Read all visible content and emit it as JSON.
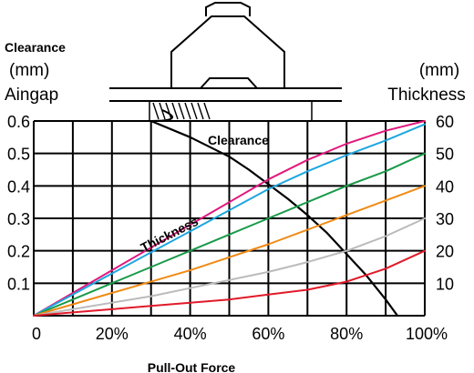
{
  "chart_data": {
    "type": "line",
    "title": "",
    "xlabel": "Pull-Out Force",
    "y_left": {
      "label_lines": [
        "Clearance",
        "(mm)",
        "Aingap"
      ],
      "range": [
        0,
        0.6
      ],
      "ticks": [
        "0.1",
        "0.2",
        "0.3",
        "0.4",
        "0.5",
        "0.6"
      ],
      "tick_values": [
        0.1,
        0.2,
        0.3,
        0.4,
        0.5,
        0.6
      ]
    },
    "y_right": {
      "label_lines": [
        "(mm)",
        "Thickness"
      ],
      "range": [
        0,
        60
      ],
      "ticks": [
        "10",
        "20",
        "30",
        "40",
        "50",
        "60"
      ],
      "tick_values": [
        10,
        20,
        30,
        40,
        50,
        60
      ]
    },
    "x_axis": {
      "range": [
        0,
        100
      ],
      "ticks": [
        "0",
        "20%",
        "40%",
        "60%",
        "80%",
        "100%"
      ],
      "tick_values": [
        0,
        20,
        40,
        60,
        80,
        100
      ]
    },
    "grid": true,
    "annotations": [
      {
        "text": "Clearance",
        "series": "clearance"
      },
      {
        "text": "Thickness",
        "series": "thickness"
      }
    ],
    "series": [
      {
        "id": "clearance",
        "color": "#000000",
        "axis": "left",
        "points": [
          [
            30,
            0.6
          ],
          [
            40,
            0.55
          ],
          [
            50,
            0.49
          ],
          [
            55,
            0.45
          ],
          [
            60,
            0.405
          ],
          [
            65,
            0.36
          ],
          [
            70,
            0.31
          ],
          [
            75,
            0.255
          ],
          [
            80,
            0.19
          ],
          [
            85,
            0.125
          ],
          [
            90,
            0.05
          ],
          [
            93,
            0
          ]
        ]
      },
      {
        "id": "thickness-60",
        "color": "#e0197d",
        "axis": "right",
        "points": [
          [
            0,
            0
          ],
          [
            10,
            7
          ],
          [
            20,
            14
          ],
          [
            30,
            21
          ],
          [
            40,
            28
          ],
          [
            50,
            35
          ],
          [
            60,
            42
          ],
          [
            70,
            48
          ],
          [
            80,
            53
          ],
          [
            90,
            57
          ],
          [
            100,
            60
          ]
        ]
      },
      {
        "id": "thickness-50",
        "color": "#1ea6e0",
        "axis": "right",
        "points": [
          [
            0,
            0
          ],
          [
            10,
            6.5
          ],
          [
            20,
            13
          ],
          [
            30,
            19.5
          ],
          [
            40,
            26
          ],
          [
            50,
            32.5
          ],
          [
            60,
            39
          ],
          [
            70,
            44.5
          ],
          [
            80,
            49.5
          ],
          [
            90,
            54
          ],
          [
            100,
            59
          ]
        ]
      },
      {
        "id": "thickness-40",
        "color": "#1a9a4a",
        "axis": "right",
        "points": [
          [
            0,
            0
          ],
          [
            10,
            5
          ],
          [
            20,
            10
          ],
          [
            30,
            15
          ],
          [
            40,
            20
          ],
          [
            50,
            25
          ],
          [
            60,
            30
          ],
          [
            70,
            35
          ],
          [
            80,
            40
          ],
          [
            90,
            44.5
          ],
          [
            100,
            50
          ]
        ]
      },
      {
        "id": "thickness-30",
        "color": "#f08a14",
        "axis": "right",
        "points": [
          [
            0,
            0
          ],
          [
            10,
            3.5
          ],
          [
            20,
            7
          ],
          [
            30,
            10.5
          ],
          [
            40,
            14
          ],
          [
            50,
            18
          ],
          [
            60,
            22
          ],
          [
            70,
            26.5
          ],
          [
            80,
            31
          ],
          [
            90,
            35.5
          ],
          [
            100,
            40
          ]
        ]
      },
      {
        "id": "thickness-20",
        "color": "#bbbbbb",
        "axis": "right",
        "points": [
          [
            0,
            0
          ],
          [
            10,
            2
          ],
          [
            20,
            4
          ],
          [
            30,
            6
          ],
          [
            40,
            8.5
          ],
          [
            50,
            11
          ],
          [
            60,
            13.5
          ],
          [
            70,
            16.5
          ],
          [
            80,
            20
          ],
          [
            90,
            24.5
          ],
          [
            100,
            30
          ]
        ]
      },
      {
        "id": "thickness-10",
        "color": "#e01a2a",
        "axis": "right",
        "points": [
          [
            0,
            0
          ],
          [
            10,
            1
          ],
          [
            20,
            2
          ],
          [
            30,
            3
          ],
          [
            40,
            4
          ],
          [
            50,
            5
          ],
          [
            60,
            6.5
          ],
          [
            70,
            8
          ],
          [
            80,
            10.5
          ],
          [
            90,
            14.5
          ],
          [
            100,
            20
          ]
        ]
      }
    ]
  }
}
